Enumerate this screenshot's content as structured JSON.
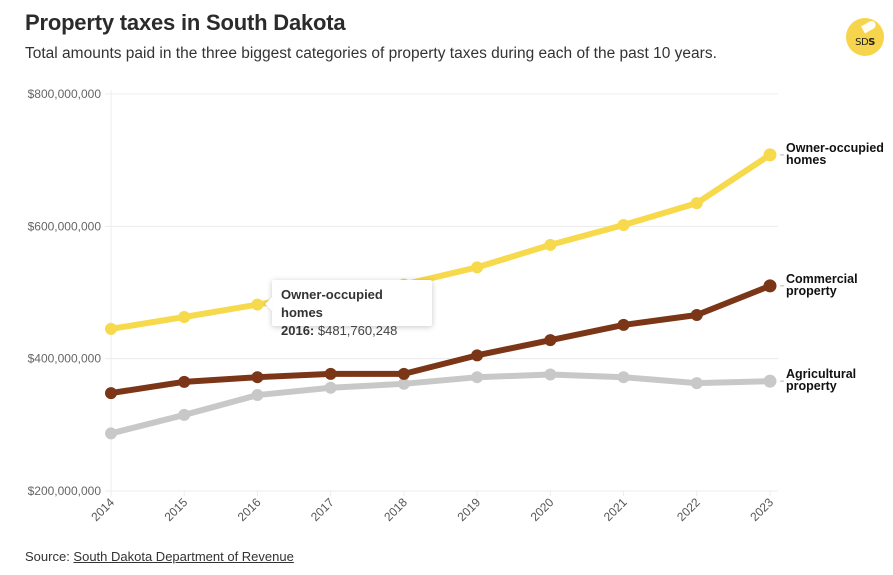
{
  "header": {
    "title": "Property taxes in South Dakota",
    "subtitle": "Total amounts paid in the three biggest categories of property taxes during each of the past 10 years.",
    "logo_text_light": "SD",
    "logo_text_bold": "S",
    "logo_color": "#f6d44b"
  },
  "tooltip": {
    "series": "Owner-occupied homes",
    "year_label": "2016:",
    "value_label": "$481,760,248"
  },
  "footer": {
    "source_prefix": "Source: ",
    "source_link": "South Dakota Department of Revenue"
  },
  "chart_data": {
    "type": "line",
    "title": "Property taxes in South Dakota",
    "subtitle": "Total amounts paid in the three biggest categories of property taxes during each of the past 10 years.",
    "xlabel": "",
    "ylabel": "",
    "x": [
      "2014",
      "2015",
      "2016",
      "2017",
      "2018",
      "2019",
      "2020",
      "2021",
      "2022",
      "2023"
    ],
    "ylim": [
      200000000,
      800000000
    ],
    "yticks": [
      200000000,
      400000000,
      600000000,
      800000000
    ],
    "ytick_labels": [
      "$200,000,000",
      "$400,000,000",
      "$600,000,000",
      "$800,000,000"
    ],
    "grid": true,
    "legend": "direct-labels-right",
    "series": [
      {
        "name": "Owner-occupied homes",
        "label_lines": [
          "Owner-occupied",
          "homes"
        ],
        "color": "#f7d94c",
        "values": [
          445000000,
          463000000,
          481760248,
          500000000,
          512000000,
          538000000,
          572000000,
          602000000,
          635000000,
          708000000
        ]
      },
      {
        "name": "Commercial property",
        "label_lines": [
          "Commercial",
          "property"
        ],
        "color": "#7b3517",
        "values": [
          348000000,
          365000000,
          372000000,
          377000000,
          377000000,
          405000000,
          428000000,
          451000000,
          466000000,
          510000000
        ]
      },
      {
        "name": "Agricultural property",
        "label_lines": [
          "Agricultural",
          "property"
        ],
        "color": "#c8c8c8",
        "values": [
          287000000,
          315000000,
          345000000,
          356000000,
          362000000,
          372000000,
          376000000,
          372000000,
          363000000,
          366000000
        ]
      }
    ],
    "annotations": [
      {
        "type": "tooltip",
        "series": "Owner-occupied homes",
        "x": "2016",
        "value": 481760248,
        "text": "2016: $481,760,248"
      }
    ]
  }
}
